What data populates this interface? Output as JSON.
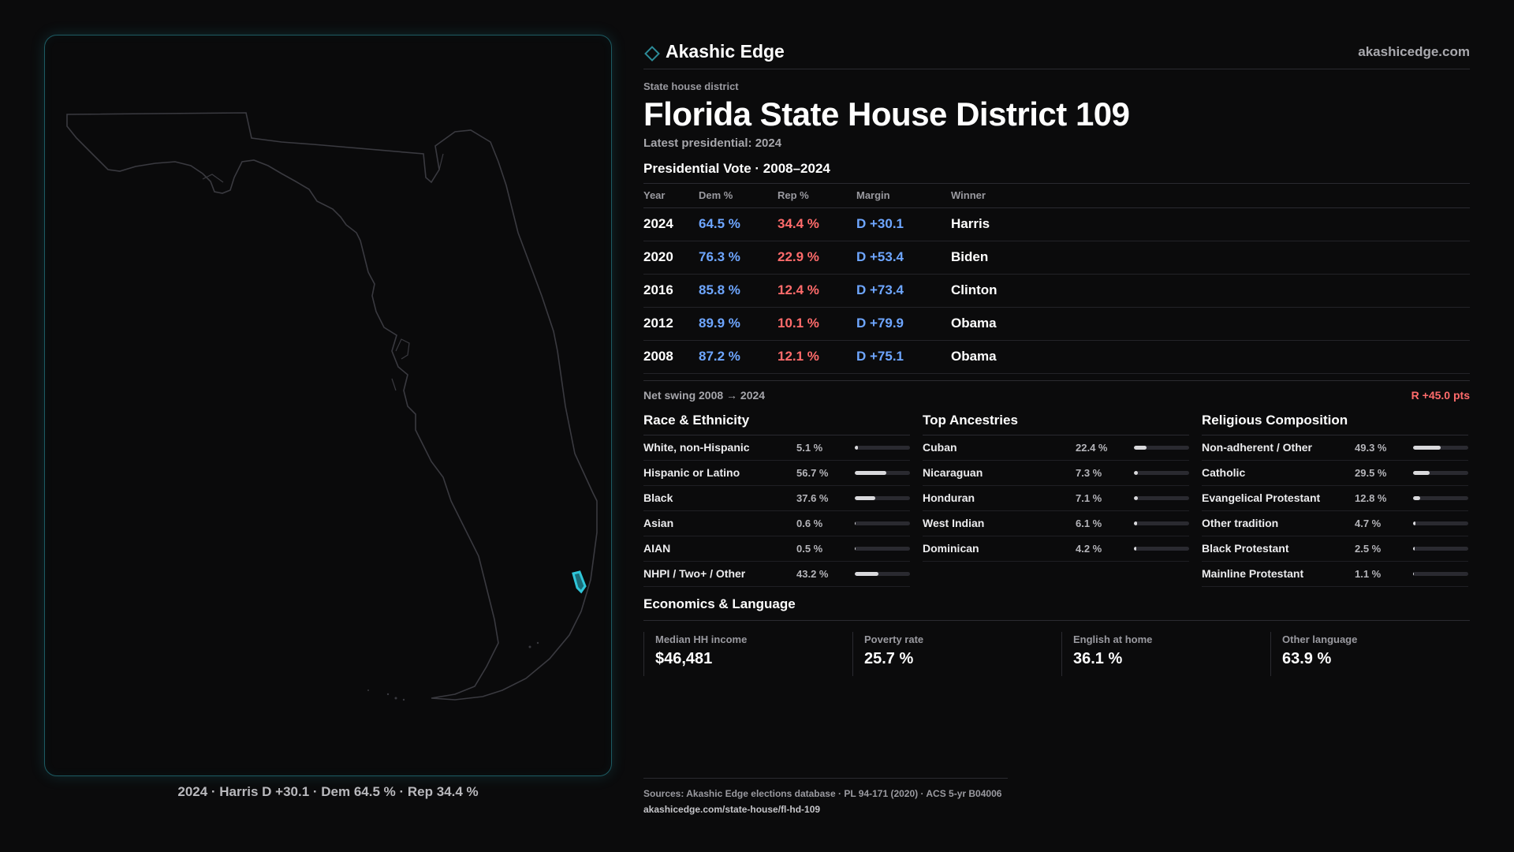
{
  "map": {
    "caption": "2024 · Harris D +30.1 · Dem 64.5 % · Rep 34.4 %",
    "outline_color": "#3a3a40",
    "highlight_color": "#2fc6d9"
  },
  "brand": {
    "name": "Akashic Edge",
    "url": "akashicedge.com",
    "accent": "#2d8c99",
    "icon": "diamond-icon"
  },
  "header": {
    "kicker": "State house district",
    "title": "Florida State House District 109",
    "latest": "Latest presidential: 2024"
  },
  "presidential": {
    "heading": "Presidential Vote · 2008–2024",
    "columns": {
      "year": "Year",
      "dem": "Dem %",
      "rep": "Rep %",
      "margin": "Margin",
      "winner": "Winner"
    },
    "rows": [
      {
        "year": "2024",
        "dem": "64.5 %",
        "rep": "34.4 %",
        "margin": "D +30.1",
        "winner": "Harris"
      },
      {
        "year": "2020",
        "dem": "76.3 %",
        "rep": "22.9 %",
        "margin": "D +53.4",
        "winner": "Biden"
      },
      {
        "year": "2016",
        "dem": "85.8 %",
        "rep": "12.4 %",
        "margin": "D +73.4",
        "winner": "Clinton"
      },
      {
        "year": "2012",
        "dem": "89.9 %",
        "rep": "10.1 %",
        "margin": "D +79.9",
        "winner": "Obama"
      },
      {
        "year": "2008",
        "dem": "87.2 %",
        "rep": "12.1 %",
        "margin": "D +75.1",
        "winner": "Obama"
      }
    ],
    "swing_label": "Net swing 2008 → 2024",
    "swing_value": "R +45.0 pts",
    "dem_color": "#6ea6ff",
    "rep_color": "#ff6b6b"
  },
  "race": {
    "heading": "Race & Ethnicity",
    "rows": [
      {
        "label": "White, non-Hispanic",
        "pct": "5.1 %",
        "value": 5.1
      },
      {
        "label": "Hispanic or Latino",
        "pct": "56.7 %",
        "value": 56.7
      },
      {
        "label": "Black",
        "pct": "37.6 %",
        "value": 37.6
      },
      {
        "label": "Asian",
        "pct": "0.6 %",
        "value": 0.6
      },
      {
        "label": "AIAN",
        "pct": "0.5 %",
        "value": 0.5
      },
      {
        "label": "NHPI / Two+ / Other",
        "pct": "43.2 %",
        "value": 43.2
      }
    ]
  },
  "ancestry": {
    "heading": "Top Ancestries",
    "rows": [
      {
        "label": "Cuban",
        "pct": "22.4 %",
        "value": 22.4
      },
      {
        "label": "Nicaraguan",
        "pct": "7.3 %",
        "value": 7.3
      },
      {
        "label": "Honduran",
        "pct": "7.1 %",
        "value": 7.1
      },
      {
        "label": "West Indian",
        "pct": "6.1 %",
        "value": 6.1
      },
      {
        "label": "Dominican",
        "pct": "4.2 %",
        "value": 4.2
      }
    ]
  },
  "religion": {
    "heading": "Religious Composition",
    "rows": [
      {
        "label": "Non-adherent / Other",
        "pct": "49.3 %",
        "value": 49.3
      },
      {
        "label": "Catholic",
        "pct": "29.5 %",
        "value": 29.5
      },
      {
        "label": "Evangelical Protestant",
        "pct": "12.8 %",
        "value": 12.8
      },
      {
        "label": "Other tradition",
        "pct": "4.7 %",
        "value": 4.7
      },
      {
        "label": "Black Protestant",
        "pct": "2.5 %",
        "value": 2.5
      },
      {
        "label": "Mainline Protestant",
        "pct": "1.1 %",
        "value": 1.1
      }
    ]
  },
  "economics": {
    "heading": "Economics & Language",
    "cards": [
      {
        "label": "Median HH income",
        "value": "$46,481"
      },
      {
        "label": "Poverty rate",
        "value": "25.7 %"
      },
      {
        "label": "English at home",
        "value": "36.1 %"
      },
      {
        "label": "Other language",
        "value": "63.9 %"
      }
    ]
  },
  "footer": {
    "sources": "Sources: Akashic Edge elections database · PL 94-171 (2020) · ACS 5-yr B04006",
    "url": "akashicedge.com/state-house/fl-hd-109"
  }
}
